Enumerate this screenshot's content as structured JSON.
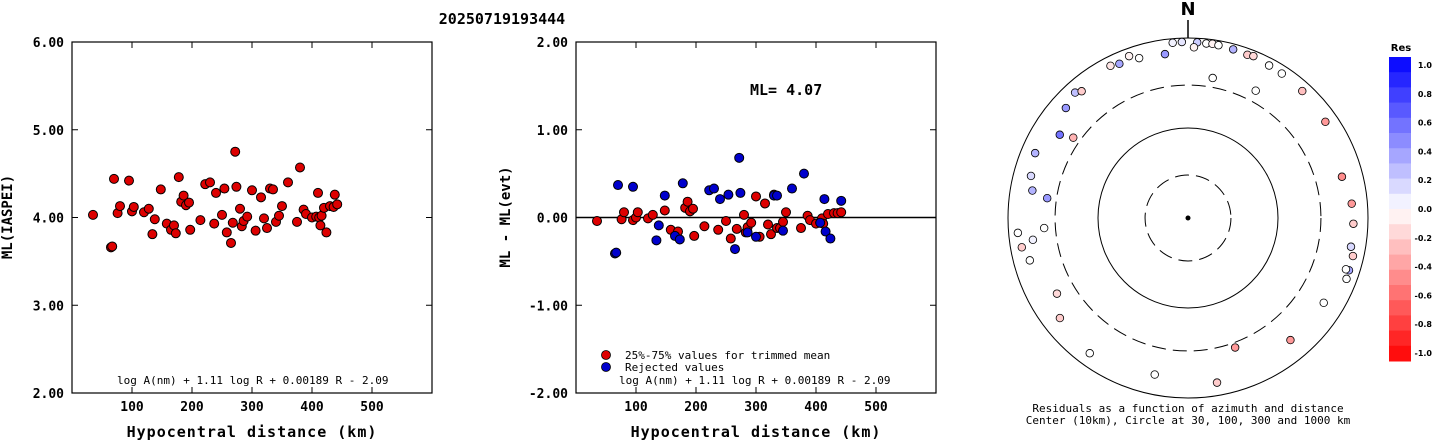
{
  "title": "20250719193444",
  "chart_data": [
    {
      "type": "scatter",
      "id": "ml-vs-distance",
      "xlabel": "Hypocentral distance (km)",
      "ylabel": "ML(IASPEI)",
      "xlim": [
        0,
        600
      ],
      "ylim": [
        2.0,
        6.0
      ],
      "xticks": [
        "100",
        "200",
        "300",
        "400",
        "500"
      ],
      "yticks": [
        "2.00",
        "3.00",
        "4.00",
        "5.00",
        "6.00"
      ],
      "formula": "log A(nm) + 1.11 log R + 0.00189 R - 2.09",
      "marker_color": "#dd0000",
      "points": [
        [
          35,
          4.03
        ],
        [
          65,
          3.66
        ],
        [
          67,
          3.67
        ],
        [
          70,
          4.44
        ],
        [
          76,
          4.05
        ],
        [
          80,
          4.13
        ],
        [
          95,
          4.42
        ],
        [
          100,
          4.07
        ],
        [
          103,
          4.12
        ],
        [
          120,
          4.06
        ],
        [
          128,
          4.1
        ],
        [
          134,
          3.81
        ],
        [
          138,
          3.98
        ],
        [
          148,
          4.32
        ],
        [
          158,
          3.93
        ],
        [
          165,
          3.86
        ],
        [
          170,
          3.91
        ],
        [
          173,
          3.82
        ],
        [
          178,
          4.46
        ],
        [
          182,
          4.18
        ],
        [
          186,
          4.25
        ],
        [
          190,
          4.14
        ],
        [
          195,
          4.17
        ],
        [
          197,
          3.86
        ],
        [
          214,
          3.97
        ],
        [
          222,
          4.38
        ],
        [
          230,
          4.4
        ],
        [
          237,
          3.93
        ],
        [
          240,
          4.28
        ],
        [
          250,
          4.03
        ],
        [
          254,
          4.33
        ],
        [
          258,
          3.83
        ],
        [
          265,
          3.71
        ],
        [
          268,
          3.94
        ],
        [
          272,
          4.75
        ],
        [
          274,
          4.35
        ],
        [
          280,
          4.1
        ],
        [
          283,
          3.9
        ],
        [
          286,
          3.96
        ],
        [
          292,
          4.01
        ],
        [
          300,
          4.31
        ],
        [
          306,
          3.85
        ],
        [
          315,
          4.23
        ],
        [
          320,
          3.99
        ],
        [
          325,
          3.88
        ],
        [
          330,
          4.33
        ],
        [
          335,
          4.32
        ],
        [
          340,
          3.95
        ],
        [
          345,
          4.02
        ],
        [
          350,
          4.13
        ],
        [
          360,
          4.4
        ],
        [
          375,
          3.95
        ],
        [
          380,
          4.57
        ],
        [
          386,
          4.09
        ],
        [
          390,
          4.04
        ],
        [
          400,
          4.0
        ],
        [
          407,
          4.01
        ],
        [
          410,
          4.28
        ],
        [
          412,
          4.0
        ],
        [
          414,
          3.91
        ],
        [
          416,
          4.02
        ],
        [
          420,
          4.11
        ],
        [
          424,
          3.83
        ],
        [
          430,
          4.13
        ],
        [
          436,
          4.12
        ],
        [
          438,
          4.26
        ],
        [
          442,
          4.15
        ]
      ]
    },
    {
      "type": "scatter",
      "id": "residual-vs-distance",
      "xlabel": "Hypocentral distance (km)",
      "ylabel": "ML - ML(evt)",
      "xlim": [
        0,
        600
      ],
      "ylim": [
        -2.0,
        2.0
      ],
      "xticks": [
        "100",
        "200",
        "300",
        "400",
        "500"
      ],
      "yticks": [
        "-2.00",
        "-1.00",
        "0.00",
        "1.00",
        "2.00"
      ],
      "ml_label": "ML= 4.07",
      "zero_line": 0.0,
      "legend_position": "bottom-left",
      "formula": "log A(nm) + 1.11 log R + 0.00189 R - 2.09",
      "series": [
        {
          "name": "25%-75% values for trimmed mean",
          "color": "#dd0000",
          "points": [
            [
              35,
              -0.04
            ],
            [
              76,
              -0.02
            ],
            [
              80,
              0.06
            ],
            [
              95,
              -0.03
            ],
            [
              100,
              0.0
            ],
            [
              103,
              0.06
            ],
            [
              120,
              -0.01
            ],
            [
              128,
              0.03
            ],
            [
              148,
              0.08
            ],
            [
              158,
              -0.14
            ],
            [
              170,
              -0.16
            ],
            [
              182,
              0.11
            ],
            [
              186,
              0.18
            ],
            [
              190,
              0.07
            ],
            [
              195,
              0.1
            ],
            [
              197,
              -0.21
            ],
            [
              214,
              -0.1
            ],
            [
              237,
              -0.14
            ],
            [
              250,
              -0.04
            ],
            [
              258,
              -0.24
            ],
            [
              268,
              -0.13
            ],
            [
              280,
              0.03
            ],
            [
              283,
              -0.17
            ],
            [
              286,
              -0.11
            ],
            [
              292,
              -0.06
            ],
            [
              300,
              0.24
            ],
            [
              306,
              -0.22
            ],
            [
              315,
              0.16
            ],
            [
              320,
              -0.08
            ],
            [
              325,
              -0.19
            ],
            [
              330,
              0.26
            ],
            [
              335,
              -0.12
            ],
            [
              340,
              -0.12
            ],
            [
              345,
              -0.05
            ],
            [
              350,
              0.06
            ],
            [
              375,
              -0.12
            ],
            [
              386,
              0.02
            ],
            [
              390,
              -0.03
            ],
            [
              400,
              -0.07
            ],
            [
              407,
              -0.06
            ],
            [
              410,
              -0.01
            ],
            [
              412,
              -0.07
            ],
            [
              420,
              0.04
            ],
            [
              430,
              0.05
            ],
            [
              436,
              0.05
            ],
            [
              442,
              0.06
            ]
          ]
        },
        {
          "name": "Rejected values",
          "color": "#0000cc",
          "points": [
            [
              65,
              -0.41
            ],
            [
              67,
              -0.4
            ],
            [
              70,
              0.37
            ],
            [
              95,
              0.35
            ],
            [
              134,
              -0.26
            ],
            [
              138,
              -0.09
            ],
            [
              148,
              0.25
            ],
            [
              165,
              -0.21
            ],
            [
              173,
              -0.25
            ],
            [
              178,
              0.39
            ],
            [
              222,
              0.31
            ],
            [
              230,
              0.33
            ],
            [
              240,
              0.21
            ],
            [
              254,
              0.26
            ],
            [
              265,
              -0.36
            ],
            [
              272,
              0.68
            ],
            [
              274,
              0.28
            ],
            [
              286,
              -0.17
            ],
            [
              300,
              -0.22
            ],
            [
              330,
              0.25
            ],
            [
              335,
              0.25
            ],
            [
              345,
              -0.15
            ],
            [
              360,
              0.33
            ],
            [
              380,
              0.5
            ],
            [
              407,
              -0.06
            ],
            [
              414,
              0.21
            ],
            [
              416,
              -0.16
            ],
            [
              424,
              -0.24
            ],
            [
              442,
              0.19
            ]
          ]
        }
      ]
    },
    {
      "type": "polar-scatter",
      "id": "azimuth-residuals",
      "north_label": "N",
      "caption_line1": "Residuals as a function of azimuth and distance",
      "caption_line2": "Center (10km), Circle at 30, 100, 300 and 1000 km",
      "rings_km": [
        30,
        100,
        300,
        1000
      ],
      "ring_styles": [
        "dashed",
        "solid",
        "dashed",
        "solid"
      ],
      "colorbar": {
        "title": "Res",
        "labels": [
          "1.0",
          "0.8",
          "0.6",
          "0.4",
          "0.2",
          "0.0",
          "-0.2",
          "-0.4",
          "-0.6",
          "-0.8",
          "-1.0"
        ],
        "max_color": "#0000ff",
        "min_color": "#ff0000"
      },
      "points": [
        {
          "az": 3,
          "dist": 900,
          "res": 0.2
        },
        {
          "az": 358,
          "dist": 905,
          "res": 0.1
        },
        {
          "az": 355,
          "dist": 900,
          "res": 0.05
        },
        {
          "az": 6,
          "dist": 890,
          "res": 0.0
        },
        {
          "az": 8,
          "dist": 900,
          "res": -0.05
        },
        {
          "az": 10,
          "dist": 890,
          "res": 0.0
        },
        {
          "az": 15,
          "dist": 870,
          "res": 0.3
        },
        {
          "az": 20,
          "dist": 850,
          "res": -0.2
        },
        {
          "az": 22,
          "dist": 870,
          "res": -0.15
        },
        {
          "az": 28,
          "dist": 830,
          "res": 0.0
        },
        {
          "az": 33,
          "dist": 820,
          "res": 0.0
        },
        {
          "az": 42,
          "dist": 790,
          "res": -0.25
        },
        {
          "az": 55,
          "dist": 730,
          "res": -0.4
        },
        {
          "az": 75,
          "dist": 590,
          "res": -0.45
        },
        {
          "az": 85,
          "dist": 670,
          "res": -0.4
        },
        {
          "az": 92,
          "dist": 690,
          "res": -0.2
        },
        {
          "az": 100,
          "dist": 690,
          "res": 0.15
        },
        {
          "az": 103,
          "dist": 760,
          "res": -0.2
        },
        {
          "az": 108,
          "dist": 760,
          "res": 0.35
        },
        {
          "az": 111,
          "dist": 770,
          "res": 0.0
        },
        {
          "az": 108,
          "dist": 700,
          "res": 0.0
        },
        {
          "az": 122,
          "dist": 600,
          "res": 0.0
        },
        {
          "az": 140,
          "dist": 590,
          "res": -0.4
        },
        {
          "az": 160,
          "dist": 340,
          "res": -0.4
        },
        {
          "az": 170,
          "dist": 720,
          "res": -0.2
        },
        {
          "az": 192,
          "dist": 600,
          "res": 0.0
        },
        {
          "az": 216,
          "dist": 720,
          "res": 0.0
        },
        {
          "az": 232,
          "dist": 640,
          "res": -0.2
        },
        {
          "az": 240,
          "dist": 480,
          "res": -0.15
        },
        {
          "az": 255,
          "dist": 660,
          "res": 0.0
        },
        {
          "az": 260,
          "dist": 750,
          "res": -0.2
        },
        {
          "az": 265,
          "dist": 790,
          "res": 0.0
        },
        {
          "az": 262,
          "dist": 550,
          "res": 0.05
        },
        {
          "az": 266,
          "dist": 400,
          "res": 0.0
        },
        {
          "az": 278,
          "dist": 380,
          "res": 0.4
        },
        {
          "az": 280,
          "dist": 570,
          "res": 0.3
        },
        {
          "az": 285,
          "dist": 640,
          "res": 0.15
        },
        {
          "az": 293,
          "dist": 700,
          "res": 0.3
        },
        {
          "az": 305,
          "dist": 360,
          "res": -0.3
        },
        {
          "az": 303,
          "dist": 500,
          "res": 0.55
        },
        {
          "az": 312,
          "dist": 670,
          "res": 0.4
        },
        {
          "az": 318,
          "dist": 750,
          "res": 0.25
        },
        {
          "az": 320,
          "dist": 690,
          "res": -0.2
        },
        {
          "az": 336,
          "dist": 750,
          "res": 0.35
        },
        {
          "az": 343,
          "dist": 720,
          "res": 0.0
        },
        {
          "az": 333,
          "dist": 790,
          "res": -0.1
        },
        {
          "az": 340,
          "dist": 820,
          "res": -0.05
        },
        {
          "az": 352,
          "dist": 690,
          "res": 0.4
        },
        {
          "az": 2,
          "dist": 790,
          "res": -0.05
        },
        {
          "az": 10,
          "dist": 380,
          "res": 0.0
        },
        {
          "az": 28,
          "dist": 400,
          "res": 0.0
        }
      ]
    }
  ]
}
